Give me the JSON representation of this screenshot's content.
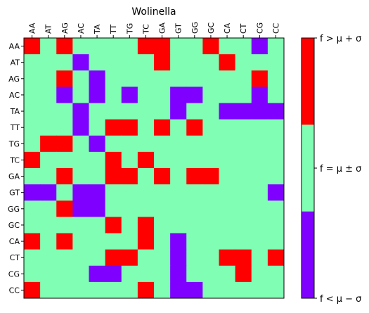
{
  "chart_data": {
    "type": "heatmap",
    "title": "Wolinella",
    "x_labels": [
      "AA",
      "AT",
      "AG",
      "AC",
      "TA",
      "TT",
      "TG",
      "TC",
      "GA",
      "GT",
      "GG",
      "GC",
      "CA",
      "CT",
      "CG",
      "CC"
    ],
    "y_labels": [
      "AA",
      "AT",
      "AG",
      "AC",
      "TA",
      "TT",
      "TG",
      "TC",
      "GA",
      "GT",
      "GG",
      "GC",
      "CA",
      "CT",
      "CG",
      "CC"
    ],
    "levels": [
      "low",
      "mid",
      "high"
    ],
    "colors": {
      "low": "#8000ff",
      "mid": "#80ffb4",
      "high": "#ff0000"
    },
    "colorbar": {
      "labels": [
        {
          "level": "high",
          "text": "f > μ + σ"
        },
        {
          "level": "mid",
          "text": "f = μ ± σ"
        },
        {
          "level": "low",
          "text": "f < μ − σ"
        }
      ]
    },
    "values": [
      [
        "high",
        "mid",
        "high",
        "mid",
        "mid",
        "mid",
        "mid",
        "high",
        "high",
        "mid",
        "mid",
        "high",
        "mid",
        "mid",
        "low",
        "mid"
      ],
      [
        "mid",
        "mid",
        "mid",
        "low",
        "mid",
        "mid",
        "mid",
        "mid",
        "high",
        "mid",
        "mid",
        "mid",
        "high",
        "mid",
        "mid",
        "mid"
      ],
      [
        "mid",
        "mid",
        "high",
        "mid",
        "low",
        "mid",
        "mid",
        "mid",
        "mid",
        "mid",
        "mid",
        "mid",
        "mid",
        "mid",
        "high",
        "mid"
      ],
      [
        "mid",
        "mid",
        "low",
        "mid",
        "low",
        "mid",
        "low",
        "mid",
        "mid",
        "low",
        "low",
        "mid",
        "mid",
        "mid",
        "low",
        "mid"
      ],
      [
        "mid",
        "mid",
        "mid",
        "low",
        "mid",
        "mid",
        "mid",
        "mid",
        "mid",
        "low",
        "mid",
        "mid",
        "low",
        "low",
        "low",
        "low"
      ],
      [
        "mid",
        "mid",
        "mid",
        "low",
        "mid",
        "high",
        "high",
        "mid",
        "high",
        "mid",
        "high",
        "mid",
        "mid",
        "mid",
        "mid",
        "mid"
      ],
      [
        "mid",
        "high",
        "high",
        "mid",
        "low",
        "mid",
        "mid",
        "mid",
        "mid",
        "mid",
        "mid",
        "mid",
        "mid",
        "mid",
        "mid",
        "mid"
      ],
      [
        "high",
        "mid",
        "mid",
        "mid",
        "mid",
        "high",
        "mid",
        "high",
        "mid",
        "mid",
        "mid",
        "mid",
        "mid",
        "mid",
        "mid",
        "mid"
      ],
      [
        "mid",
        "mid",
        "high",
        "mid",
        "mid",
        "high",
        "high",
        "mid",
        "high",
        "mid",
        "high",
        "high",
        "mid",
        "mid",
        "mid",
        "mid"
      ],
      [
        "low",
        "low",
        "mid",
        "low",
        "low",
        "mid",
        "mid",
        "mid",
        "mid",
        "mid",
        "mid",
        "mid",
        "mid",
        "mid",
        "mid",
        "low"
      ],
      [
        "mid",
        "mid",
        "high",
        "low",
        "low",
        "mid",
        "mid",
        "mid",
        "mid",
        "mid",
        "mid",
        "mid",
        "mid",
        "mid",
        "mid",
        "mid"
      ],
      [
        "mid",
        "mid",
        "mid",
        "mid",
        "mid",
        "high",
        "mid",
        "high",
        "mid",
        "mid",
        "mid",
        "mid",
        "mid",
        "mid",
        "mid",
        "mid"
      ],
      [
        "high",
        "mid",
        "high",
        "mid",
        "mid",
        "mid",
        "mid",
        "high",
        "mid",
        "low",
        "mid",
        "mid",
        "mid",
        "mid",
        "mid",
        "mid"
      ],
      [
        "mid",
        "mid",
        "mid",
        "mid",
        "mid",
        "high",
        "high",
        "mid",
        "mid",
        "low",
        "mid",
        "mid",
        "high",
        "high",
        "mid",
        "high"
      ],
      [
        "mid",
        "mid",
        "mid",
        "mid",
        "low",
        "low",
        "mid",
        "mid",
        "mid",
        "low",
        "mid",
        "mid",
        "mid",
        "high",
        "mid",
        "mid"
      ],
      [
        "high",
        "mid",
        "mid",
        "mid",
        "mid",
        "mid",
        "mid",
        "high",
        "mid",
        "low",
        "low",
        "mid",
        "mid",
        "mid",
        "mid",
        "mid"
      ]
    ]
  }
}
